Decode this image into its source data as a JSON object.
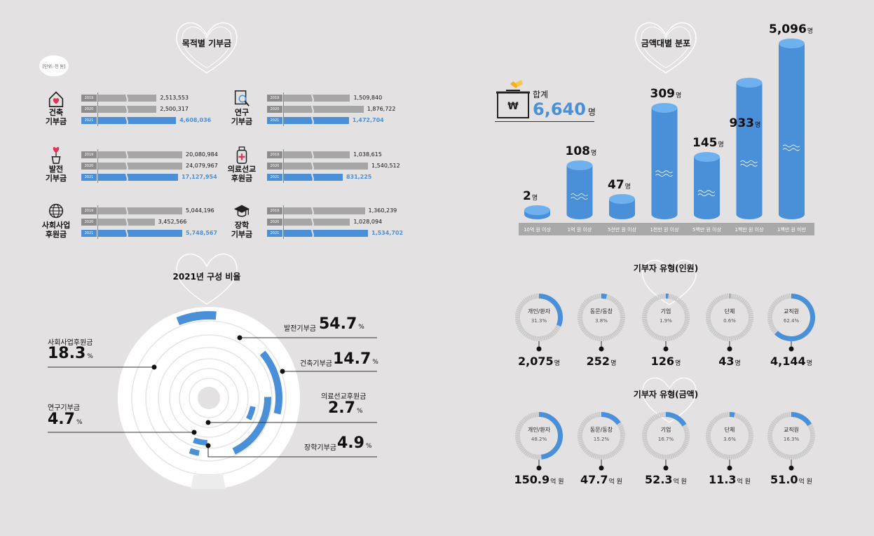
{
  "purpose": {
    "title": "목적별 기부금",
    "unit": "[단위: 천 원]",
    "groups": [
      {
        "label_lines": [
          "건축",
          "기부금"
        ],
        "icon": "house-heart-icon",
        "rows": [
          {
            "year": "2019",
            "value": 2513553,
            "text": "2,513,553"
          },
          {
            "year": "2020",
            "value": 2500317,
            "text": "2,500,317"
          },
          {
            "year": "2021",
            "value": 4608036,
            "text": "4,608,036"
          }
        ]
      },
      {
        "label_lines": [
          "연구",
          "기부금"
        ],
        "icon": "magnifier-document-icon",
        "rows": [
          {
            "year": "2019",
            "value": 1509840,
            "text": "1,509,840"
          },
          {
            "year": "2020",
            "value": 1876722,
            "text": "1,876,722"
          },
          {
            "year": "2021",
            "value": 1472704,
            "text": "1,472,704"
          }
        ]
      },
      {
        "label_lines": [
          "발전",
          "기부금"
        ],
        "icon": "plant-heart-icon",
        "rows": [
          {
            "year": "2019",
            "value": 20080984,
            "text": "20,080,984"
          },
          {
            "year": "2020",
            "value": 24079967,
            "text": "24,079,967"
          },
          {
            "year": "2021",
            "value": 17127954,
            "text": "17,127,954"
          }
        ]
      },
      {
        "label_lines": [
          "의료선교",
          "후원금"
        ],
        "icon": "medical-bottle-icon",
        "rows": [
          {
            "year": "2019",
            "value": 1038615,
            "text": "1,038,615"
          },
          {
            "year": "2020",
            "value": 1540512,
            "text": "1,540,512"
          },
          {
            "year": "2021",
            "value": 831225,
            "text": "831,225"
          }
        ]
      },
      {
        "label_lines": [
          "사회사업",
          "후원금"
        ],
        "icon": "globe-icon",
        "rows": [
          {
            "year": "2019",
            "value": 5044196,
            "text": "5,044,196"
          },
          {
            "year": "2020",
            "value": 3452566,
            "text": "3,452,566"
          },
          {
            "year": "2021",
            "value": 5748567,
            "text": "5,748,567"
          }
        ]
      },
      {
        "label_lines": [
          "장학",
          "기부금"
        ],
        "icon": "graduation-cap-icon",
        "rows": [
          {
            "year": "2019",
            "value": 1360239,
            "text": "1,360,239"
          },
          {
            "year": "2020",
            "value": 1028094,
            "text": "1,028,094"
          },
          {
            "year": "2021",
            "value": 1534702,
            "text": "1,534,702"
          }
        ]
      }
    ]
  },
  "composition": {
    "title": "2021년 구성 비율",
    "pct_unit": "%",
    "items": [
      {
        "name": "발전기부금",
        "value": 54.7,
        "text": "54.7"
      },
      {
        "name": "건축기부금",
        "value": 14.7,
        "text": "14.7"
      },
      {
        "name": "의료선교후원금",
        "value": 2.7,
        "text": "2.7"
      },
      {
        "name": "장학기부금",
        "value": 4.9,
        "text": "4.9"
      },
      {
        "name": "사회사업후원금",
        "value": 18.3,
        "text": "18.3"
      },
      {
        "name": "연구기부금",
        "value": 4.7,
        "text": "4.7"
      }
    ]
  },
  "amount_dist": {
    "title": "금액대별 분포",
    "total_label": "합계",
    "total_value": "6,640",
    "total_unit": "명",
    "unit": "명",
    "items": [
      {
        "category": "10억 원 이상",
        "value": 2,
        "text": "2"
      },
      {
        "category": "1억 원 이상",
        "value": 108,
        "text": "108"
      },
      {
        "category": "5천만 원 이상",
        "value": 47,
        "text": "47"
      },
      {
        "category": "1천만 원 이상",
        "value": 309,
        "text": "309"
      },
      {
        "category": "5백만 원 이상",
        "value": 145,
        "text": "145"
      },
      {
        "category": "1백만 원 이상",
        "value": 933,
        "text": "933"
      },
      {
        "category": "1백만 원 미만",
        "value": 5096,
        "text": "5,096"
      }
    ]
  },
  "donor_people": {
    "title": "기부자 유형(인원)",
    "unit": "명",
    "items": [
      {
        "name": "개인/환자",
        "pct": 31.3,
        "pct_text": "31.3%",
        "value_text": "2,075"
      },
      {
        "name": "동문/동창",
        "pct": 3.8,
        "pct_text": "3.8%",
        "value_text": "252"
      },
      {
        "name": "기업",
        "pct": 1.9,
        "pct_text": "1.9%",
        "value_text": "126"
      },
      {
        "name": "단체",
        "pct": 0.6,
        "pct_text": "0.6%",
        "value_text": "43"
      },
      {
        "name": "교직원",
        "pct": 62.4,
        "pct_text": "62.4%",
        "value_text": "4,144"
      }
    ]
  },
  "donor_amount": {
    "title": "기부자 유형(금액)",
    "unit": "억 원",
    "items": [
      {
        "name": "개인/환자",
        "pct": 48.2,
        "pct_text": "48.2%",
        "value_text": "150.9"
      },
      {
        "name": "동문/동창",
        "pct": 15.2,
        "pct_text": "15.2%",
        "value_text": "47.7"
      },
      {
        "name": "기업",
        "pct": 16.7,
        "pct_text": "16.7%",
        "value_text": "52.3"
      },
      {
        "name": "단체",
        "pct": 3.6,
        "pct_text": "3.6%",
        "value_text": "11.3"
      },
      {
        "name": "교직원",
        "pct": 16.3,
        "pct_text": "16.3%",
        "value_text": "51.0"
      }
    ]
  },
  "colors": {
    "accent": "#4a90d9",
    "gray_bar": "#a6a6a6",
    "dark_year": "#8d8d8d",
    "ring_bg": "#ffffff",
    "tick": "#c9c9c9"
  },
  "chart_data": [
    {
      "type": "bar",
      "title": "목적별 기부금",
      "unit": "[단위: 천 원]",
      "categories": [
        "건축 기부금",
        "연구 기부금",
        "발전 기부금",
        "의료선교 후원금",
        "사회사업 후원금",
        "장학 기부금"
      ],
      "series": [
        {
          "name": "2019",
          "values": [
            2513553,
            1509840,
            20080984,
            1038615,
            5044196,
            1360239
          ]
        },
        {
          "name": "2020",
          "values": [
            2500317,
            1876722,
            24079967,
            1540512,
            3452566,
            1028094
          ]
        },
        {
          "name": "2021",
          "values": [
            4608036,
            1472704,
            17127954,
            831225,
            5748567,
            1534702
          ]
        }
      ]
    },
    {
      "type": "pie",
      "title": "2021년 구성 비율",
      "categories": [
        "발전기부금",
        "건축기부금",
        "의료선교후원금",
        "장학기부금",
        "사회사업후원금",
        "연구기부금"
      ],
      "values": [
        54.7,
        14.7,
        2.7,
        4.9,
        18.3,
        4.7
      ]
    },
    {
      "type": "bar",
      "title": "금액대별 분포",
      "categories": [
        "10억 원 이상",
        "1억 원 이상",
        "5천만 원 이상",
        "1천만 원 이상",
        "5백만 원 이상",
        "1백만 원 이상",
        "1백만 원 미만"
      ],
      "values": [
        2,
        108,
        47,
        309,
        145,
        933,
        5096
      ]
    },
    {
      "type": "pie",
      "title": "기부자 유형(인원)",
      "categories": [
        "개인/환자",
        "동문/동창",
        "기업",
        "단체",
        "교직원"
      ],
      "values": [
        31.3,
        3.8,
        1.9,
        0.6,
        62.4
      ]
    },
    {
      "type": "pie",
      "title": "기부자 유형(금액)",
      "categories": [
        "개인/환자",
        "동문/동창",
        "기업",
        "단체",
        "교직원"
      ],
      "values": [
        48.2,
        15.2,
        16.7,
        3.6,
        16.3
      ]
    }
  ]
}
